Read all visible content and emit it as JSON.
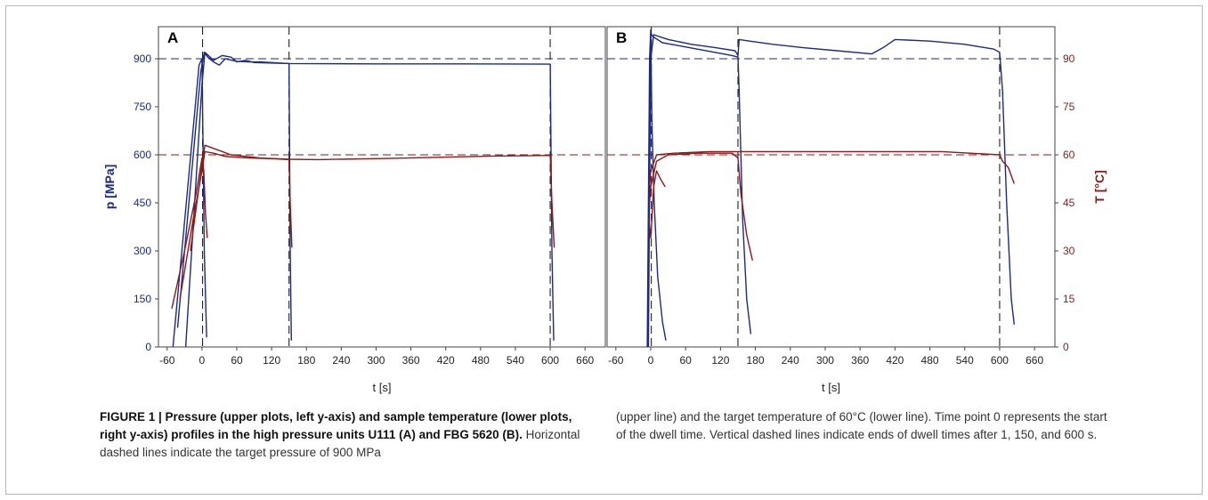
{
  "chart_data": {
    "type": "line",
    "panels": [
      {
        "label": "A",
        "xlabel": "t [s]",
        "xlim": [
          -75,
          695
        ],
        "x_ticks": [
          -60,
          0,
          60,
          120,
          180,
          240,
          300,
          360,
          420,
          480,
          540,
          600,
          660
        ],
        "ylabel": "p [MPa]",
        "ylim": [
          0,
          1000
        ],
        "y_ticks": [
          0,
          150,
          300,
          450,
          600,
          750,
          900
        ],
        "target_pressure": 900,
        "target_temperature": 60,
        "dwell_end_lines": [
          1,
          150,
          600
        ],
        "pressure_series": [
          {
            "x": [
              -50,
              -5,
              0,
              4,
              8
            ],
            "y": [
              0,
              880,
              900,
              300,
              30
            ]
          },
          {
            "x": [
              -42,
              -2,
              4,
              10,
              20,
              30,
              40,
              60,
              80,
              100,
              120,
              150,
              152,
              154
            ],
            "y": [
              60,
              860,
              920,
              905,
              890,
              880,
              900,
              892,
              890,
              890,
              888,
              885,
              300,
              20
            ]
          },
          {
            "x": [
              -28,
              0,
              5,
              20,
              35,
              50,
              60,
              75,
              90,
              150,
              300,
              450,
              600,
              603,
              606
            ],
            "y": [
              0,
              820,
              920,
              895,
              910,
              905,
              890,
              895,
              888,
              885,
              884,
              884,
              883,
              300,
              20
            ]
          }
        ],
        "temperature_series": [
          {
            "x": [
              -52,
              -30,
              -10,
              0,
              3,
              6,
              9
            ],
            "y": [
              12,
              30,
              48,
              59,
              55,
              42,
              34
            ]
          },
          {
            "x": [
              -38,
              -15,
              0,
              5,
              20,
              40,
              80,
              120,
              150,
              152,
              155
            ],
            "y": [
              15,
              40,
              55,
              61,
              60.5,
              59.5,
              59,
              58.8,
              58.5,
              45,
              31
            ]
          },
          {
            "x": [
              -20,
              0,
              5,
              20,
              50,
              100,
              150,
              200,
              300,
              400,
              500,
              600,
              603,
              607
            ],
            "y": [
              30,
              57,
              63,
              62,
              60,
              59,
              58.6,
              58.5,
              58.8,
              59.2,
              59.6,
              59.8,
              45,
              31
            ]
          }
        ]
      },
      {
        "label": "B",
        "xlabel": "t [s]",
        "xlim": [
          -75,
          695
        ],
        "x_ticks": [
          -60,
          0,
          60,
          120,
          180,
          240,
          300,
          360,
          420,
          480,
          540,
          600,
          660
        ],
        "ylabel": "T [°C]",
        "ylim": [
          0,
          100
        ],
        "y_ticks": [
          0,
          15,
          30,
          45,
          60,
          75,
          90
        ],
        "target_pressure": 900,
        "target_temperature": 60,
        "dwell_end_lines": [
          1,
          150,
          600
        ],
        "pressure_series": [
          {
            "x": [
              -6,
              -2,
              0,
              2,
              6,
              12,
              20,
              26
            ],
            "y": [
              0,
              900,
              990,
              700,
              450,
              220,
              80,
              20
            ]
          },
          {
            "x": [
              -4,
              0,
              3,
              20,
              50,
              80,
              110,
              140,
              150,
              152,
              158,
              165,
              172
            ],
            "y": [
              0,
              980,
              970,
              950,
              940,
              930,
              920,
              910,
              905,
              800,
              400,
              150,
              40
            ]
          },
          {
            "x": [
              -5,
              0,
              5,
              30,
              70,
              110,
              145,
              150,
              152,
              170,
              210,
              260,
              320,
              380,
              400,
              420,
              480,
              540,
              590,
              600,
              605,
              612,
              620,
              625
            ],
            "y": [
              0,
              900,
              975,
              960,
              945,
              935,
              925,
              910,
              960,
              955,
              945,
              935,
              925,
              915,
              935,
              960,
              955,
              945,
              930,
              920,
              800,
              450,
              150,
              70
            ]
          }
        ],
        "temperature_series": [
          {
            "x": [
              -3,
              0,
              5,
              10,
              18,
              25
            ],
            "y": [
              40,
              34,
              50,
              55,
              52,
              50
            ]
          },
          {
            "x": [
              -2,
              0,
              10,
              30,
              80,
              140,
              150,
              155,
              165,
              175
            ],
            "y": [
              45,
              50,
              58,
              60,
              60.5,
              60.5,
              59,
              48,
              35,
              27
            ]
          },
          {
            "x": [
              -2,
              0,
              10,
              40,
              100,
              200,
              300,
              400,
              500,
              600,
              605,
              615,
              625
            ],
            "y": [
              50,
              55,
              60,
              60.5,
              61,
              61,
              61,
              61,
              61,
              60,
              58,
              56,
              51
            ]
          }
        ]
      }
    ],
    "axes": {
      "x_label": "t [s]",
      "left_y_label": "p [MPa]",
      "right_y_label": "T [°C]",
      "left_ticks": [
        0,
        150,
        300,
        450,
        600,
        750,
        900
      ],
      "right_ticks": [
        0,
        15,
        30,
        45,
        60,
        75,
        90
      ]
    }
  },
  "colors": {
    "pressure": "#1b2a85",
    "temperature": "#8b1a1a",
    "dwell_line": "#222222"
  },
  "caption": {
    "bold_lead": "FIGURE 1 | Pressure (upper plots, left y-axis) and sample temperature (lower plots, right y-axis) profiles in the high pressure units U111 (A) and FBG 5620 (B).",
    "text_left": " Horizontal dashed lines indicate the target pressure of 900 MPa",
    "text_right": "(upper line) and the target temperature of 60°C (lower line). Time point 0 represents the start of the dwell time. Vertical dashed lines indicate ends of dwell times after 1, 150, and 600 s."
  }
}
